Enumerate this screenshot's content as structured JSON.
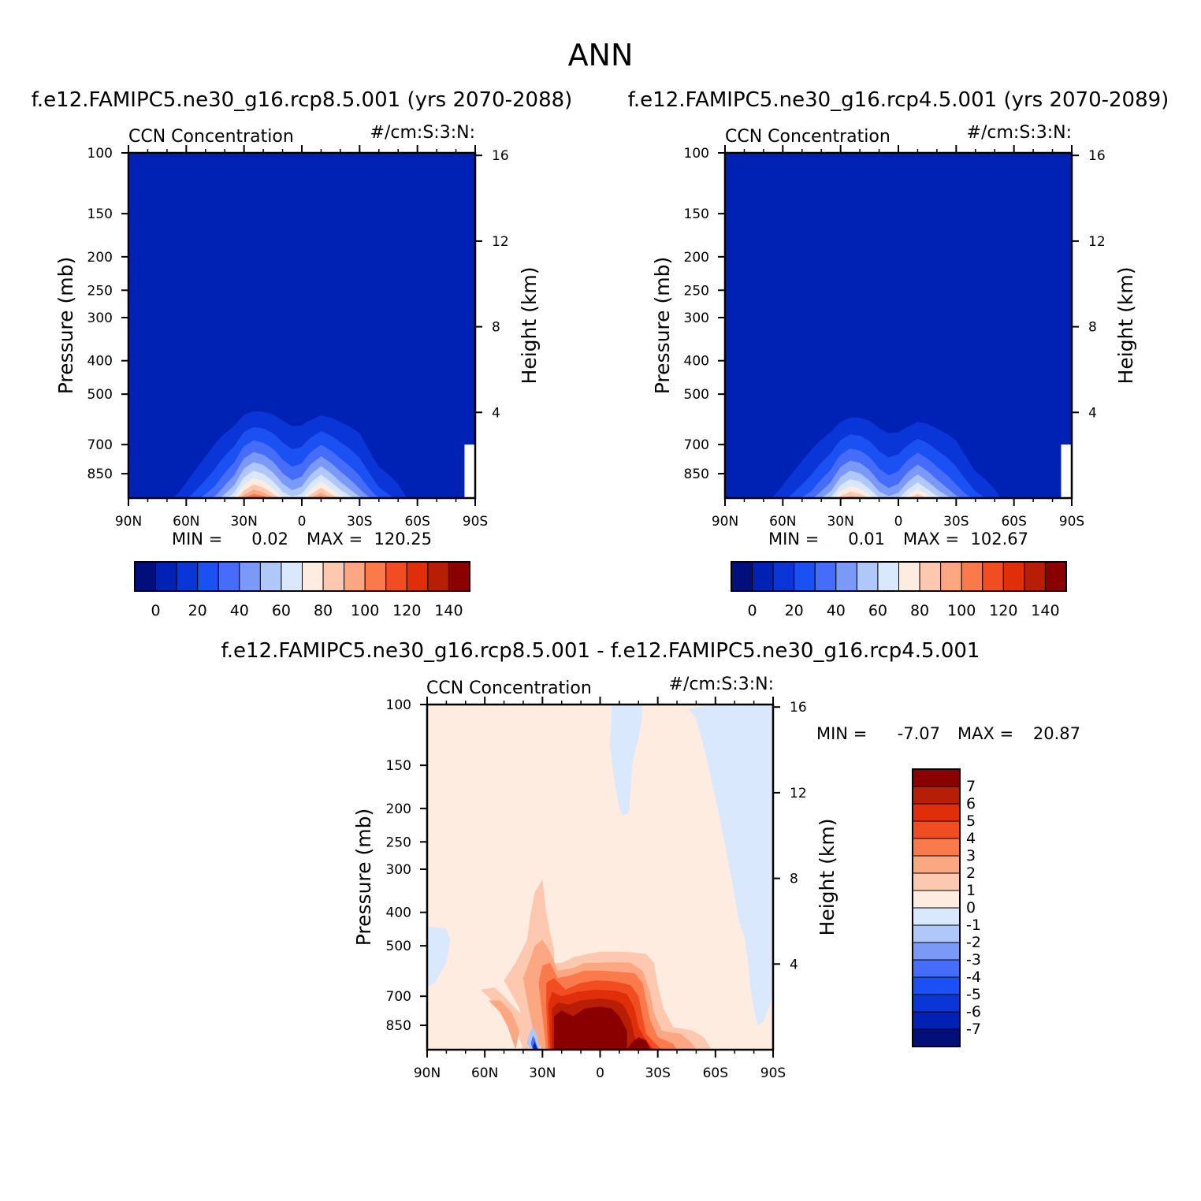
{
  "figure": {
    "title": "ANN",
    "bottom_title": "f.e12.FAMIPC5.ne30_g16.rcp8.5.001 - f.e12.FAMIPC5.ne30_g16.rcp4.5.001"
  },
  "colors": {
    "scale15": [
      "#000f7a",
      "#0022b4",
      "#0a36d8",
      "#1b50f3",
      "#456dfa",
      "#7b9af8",
      "#b0c7fa",
      "#d9e8fd",
      "#ffece0",
      "#fdc8b0",
      "#fba882",
      "#fb7a4c",
      "#f24d22",
      "#e02e0a",
      "#b81d06",
      "#8a0000"
    ],
    "diff_scale": [
      "#000f7a",
      "#0022b4",
      "#0a36d8",
      "#1b50f3",
      "#456dfa",
      "#7b9af8",
      "#b0c7fa",
      "#d9e8fd",
      "#ffece0",
      "#fdc8b0",
      "#fba882",
      "#fb7a4c",
      "#f24d22",
      "#e02e0a",
      "#b81d06",
      "#8a0000"
    ]
  },
  "chart_data": [
    {
      "type": "heatmap",
      "panel_title": "f.e12.FAMIPC5.ne30_g16.rcp8.5.001 (yrs 2070-2088)",
      "left_label": "CCN Concentration",
      "right_label": "#/cm:S:3:N:",
      "ylabel": "Pressure (mb)",
      "ylabel_right": "Height (km)",
      "x_ticks": [
        "90N",
        "60N",
        "30N",
        "0",
        "30S",
        "60S",
        "90S"
      ],
      "y_ticks": [
        100,
        150,
        200,
        250,
        300,
        400,
        500,
        700,
        850
      ],
      "y_right_ticks": [
        16,
        12,
        8,
        4
      ],
      "xlim": [
        90,
        -90
      ],
      "ylim": [
        100,
        1000
      ],
      "stats_min_label": "MIN =",
      "stats_max_label": "MAX =",
      "min": "0.02",
      "max": "120.25",
      "colorbar_ticks": [
        "0",
        "20",
        "40",
        "60",
        "80",
        "100",
        "120",
        "140"
      ],
      "colorbar_levels": [
        0,
        10,
        20,
        30,
        40,
        50,
        60,
        70,
        80,
        90,
        100,
        110,
        120,
        130,
        140
      ],
      "profile_lat": [
        75,
        60,
        45,
        35,
        30,
        25,
        20,
        15,
        10,
        5,
        0,
        -5,
        -10,
        -15,
        -20,
        -30,
        -40,
        -50,
        -55,
        -60,
        -70,
        -75
      ],
      "profile_top_pressure": [
        1000,
        700,
        545,
        520,
        500,
        495,
        492,
        490,
        495,
        505,
        512,
        515,
        508,
        505,
        508,
        515,
        660,
        685,
        700,
        740,
        1000,
        1000
      ],
      "profile_peak": [
        0,
        20,
        45,
        75,
        105,
        120,
        112,
        96,
        76,
        66,
        72,
        96,
        112,
        96,
        80,
        55,
        32,
        18,
        10,
        0,
        0,
        0
      ]
    },
    {
      "type": "heatmap",
      "panel_title": "f.e12.FAMIPC5.ne30_g16.rcp4.5.001 (yrs 2070-2089)",
      "left_label": "CCN Concentration",
      "right_label": "#/cm:S:3:N:",
      "ylabel": "Pressure (mb)",
      "ylabel_right": "Height (km)",
      "x_ticks": [
        "90N",
        "60N",
        "30N",
        "0",
        "30S",
        "60S",
        "90S"
      ],
      "y_ticks": [
        100,
        150,
        200,
        250,
        300,
        400,
        500,
        700,
        850
      ],
      "y_right_ticks": [
        16,
        12,
        8,
        4
      ],
      "xlim": [
        90,
        -90
      ],
      "ylim": [
        100,
        1000
      ],
      "stats_min_label": "MIN =",
      "stats_max_label": "MAX =",
      "min": "0.01",
      "max": "102.67",
      "colorbar_ticks": [
        "0",
        "20",
        "40",
        "60",
        "80",
        "100",
        "120",
        "140"
      ],
      "colorbar_levels": [
        0,
        10,
        20,
        30,
        40,
        50,
        60,
        70,
        80,
        90,
        100,
        110,
        120,
        130,
        140
      ],
      "profile_lat": [
        75,
        60,
        45,
        35,
        30,
        25,
        20,
        15,
        10,
        5,
        0,
        -5,
        -10,
        -15,
        -20,
        -30,
        -40,
        -50,
        -55,
        -60,
        -70,
        -75
      ],
      "profile_top_pressure": [
        1000,
        700,
        560,
        535,
        520,
        510,
        505,
        505,
        512,
        520,
        530,
        535,
        525,
        520,
        522,
        528,
        670,
        690,
        705,
        745,
        1000,
        1000
      ],
      "profile_peak": [
        0,
        18,
        40,
        65,
        90,
        102,
        96,
        82,
        64,
        56,
        62,
        82,
        96,
        82,
        68,
        46,
        28,
        15,
        8,
        0,
        0,
        0
      ]
    },
    {
      "type": "heatmap",
      "left_label": "CCN Concentration",
      "right_label": "#/cm:S:3:N:",
      "ylabel": "Pressure (mb)",
      "ylabel_right": "Height (km)",
      "x_ticks": [
        "90N",
        "60N",
        "30N",
        "0",
        "30S",
        "60S",
        "90S"
      ],
      "y_ticks": [
        100,
        150,
        200,
        250,
        300,
        400,
        500,
        700,
        850
      ],
      "y_right_ticks": [
        16,
        12,
        8,
        4
      ],
      "xlim": [
        90,
        -90
      ],
      "ylim": [
        100,
        1000
      ],
      "stats_min_label": "MIN =",
      "stats_max_label": "MAX =",
      "min": "-7.07",
      "max": "20.87",
      "colorbar_ticks": [
        "7",
        "6",
        "5",
        "4",
        "3",
        "2",
        "1",
        "0",
        "-1",
        "-2",
        "-3",
        "-4",
        "-5",
        "-6",
        "-7"
      ],
      "colorbar_levels": [
        -7,
        -6,
        -5,
        -4,
        -3,
        -2,
        -1,
        0,
        1,
        2,
        3,
        4,
        5,
        6,
        7
      ]
    }
  ]
}
